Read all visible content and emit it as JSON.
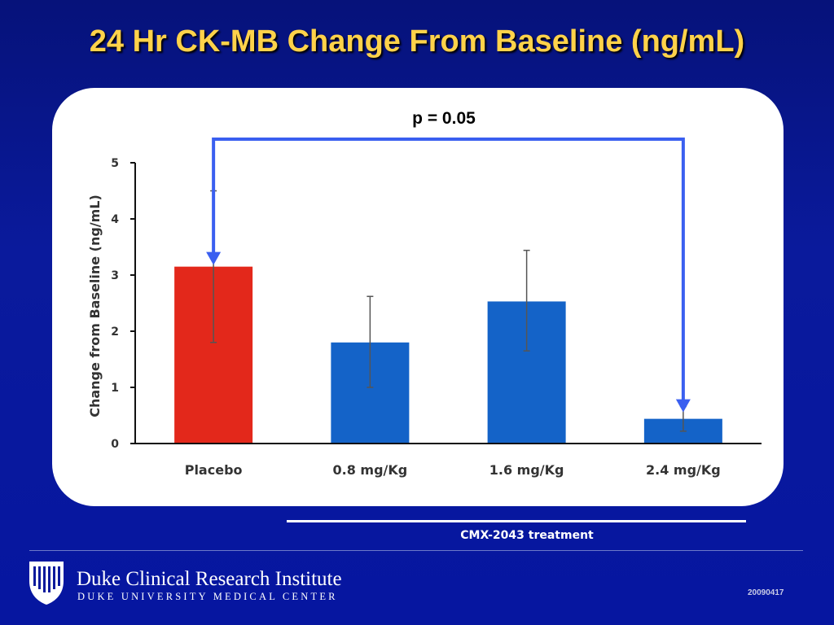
{
  "slide": {
    "title": "24 Hr CK-MB Change From Baseline (ng/mL)",
    "group_label": "CMX-2043 treatment",
    "org_name": "Duke Clinical Research Institute",
    "org_sub": "DUKE UNIVERSITY MEDICAL CENTER",
    "slide_id": "20090417"
  },
  "chart_data": {
    "type": "bar",
    "categories": [
      "Placebo",
      "0.8 mg/Kg",
      "1.6 mg/Kg",
      "2.4 mg/Kg"
    ],
    "values": [
      3.15,
      1.8,
      2.53,
      0.44
    ],
    "error_low": [
      1.8,
      1.0,
      1.65,
      0.22
    ],
    "error_high": [
      4.5,
      2.62,
      3.44,
      0.66
    ],
    "bar_colors": [
      "#e3281b",
      "#1463c8",
      "#1463c8",
      "#1463c8"
    ],
    "title": "",
    "xlabel": "",
    "ylabel": "Change from Baseline (ng/mL)",
    "ylim": [
      0,
      5
    ],
    "yticks": [
      0,
      1,
      2,
      3,
      4,
      5
    ],
    "grid": false,
    "legend": "none",
    "annotation": {
      "text": "p = 0.05",
      "from": "Placebo",
      "to": "2.4 mg/Kg",
      "color": "#3a5ff0"
    }
  }
}
